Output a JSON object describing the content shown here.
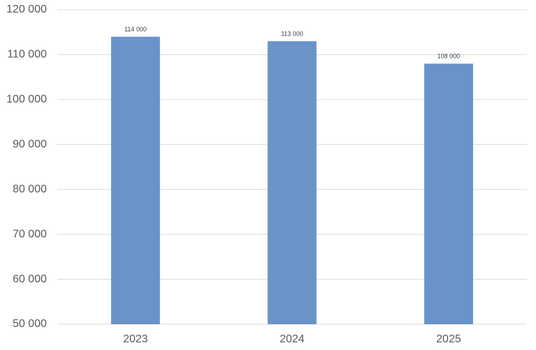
{
  "chart_data": {
    "type": "bar",
    "categories": [
      "2023",
      "2024",
      "2025"
    ],
    "values": [
      114000,
      113000,
      108000
    ],
    "value_labels": [
      "114 000",
      "113 000",
      "108 000"
    ],
    "color": "#6a93c9",
    "ylim": [
      50000,
      120000
    ],
    "yticks": [
      {
        "value": 50000,
        "label": "50 000"
      },
      {
        "value": 60000,
        "label": "60 000"
      },
      {
        "value": 70000,
        "label": "70 000"
      },
      {
        "value": 80000,
        "label": "80 000"
      },
      {
        "value": 90000,
        "label": "90 000"
      },
      {
        "value": 100000,
        "label": "100 000"
      },
      {
        "value": 110000,
        "label": "110 000"
      },
      {
        "value": 120000,
        "label": "120 000"
      }
    ],
    "grid": true
  }
}
